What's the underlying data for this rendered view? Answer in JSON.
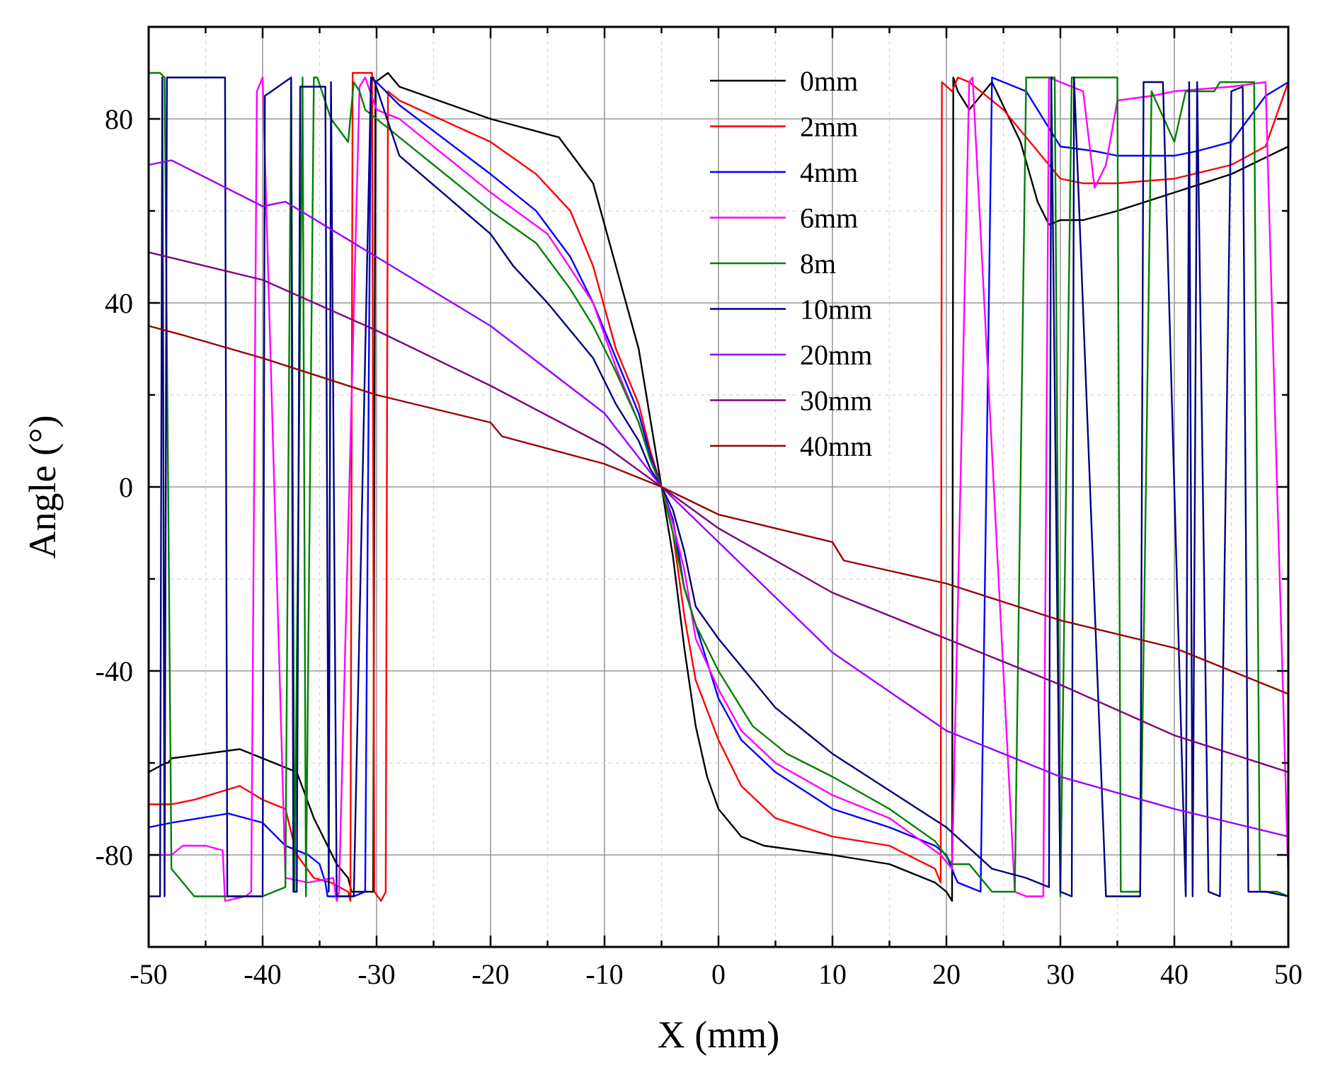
{
  "chart_data": {
    "type": "line",
    "title": "",
    "xlabel": "X (mm)",
    "ylabel": "Angle (°)",
    "xlim": [
      -50,
      50
    ],
    "ylim": [
      -100,
      100
    ],
    "xticks": [
      -50,
      -40,
      -30,
      -20,
      -10,
      0,
      10,
      20,
      30,
      40,
      50
    ],
    "xtick_labels": [
      "-50",
      "-40",
      "-30",
      "-20",
      "-10",
      "0",
      "10",
      "20",
      "30",
      "40",
      "50"
    ],
    "yticks": [
      -80,
      -40,
      0,
      40,
      80
    ],
    "ytick_labels": [
      "-80",
      "-40",
      "0",
      "40",
      "80"
    ],
    "grid": true,
    "legend_position": "top-right",
    "series": [
      {
        "name": "0mm",
        "color": "#000000",
        "x": [
          -50,
          -48.5,
          -48.3,
          -48,
          -42,
          -37,
          -35.5,
          -33.5,
          -32.5,
          -32.2,
          -30.3,
          -30.1,
          -29,
          -28,
          -20,
          -14,
          -11,
          -9,
          -7,
          -6,
          -5,
          -4,
          -3,
          -2,
          -1,
          0,
          2,
          4,
          10,
          15,
          19,
          20,
          20.5,
          20.6,
          21,
          22,
          24,
          26.5,
          28,
          29,
          30,
          32,
          35,
          40,
          45,
          50
        ],
        "y": [
          -62,
          -60,
          -60,
          -59,
          -57,
          -62,
          -72,
          -82,
          -85,
          -88,
          -88,
          88,
          90,
          87,
          80,
          76,
          66,
          48,
          30,
          15,
          0,
          -15,
          -35,
          -52,
          -63,
          -70,
          -76,
          -78,
          -80,
          -82,
          -86,
          -88,
          -90,
          89,
          86,
          82,
          88,
          75,
          62,
          57,
          58,
          58,
          60,
          64,
          68,
          74
        ]
      },
      {
        "name": "2mm",
        "color": "#ff0000",
        "x": [
          -50,
          -48,
          -46,
          -42,
          -40,
          -38,
          -37,
          -35.5,
          -34,
          -32.5,
          -32.3,
          -32.1,
          -30.4,
          -30.2,
          -29.6,
          -29.2,
          -29,
          -28,
          -20,
          -16,
          -13,
          -11,
          -9,
          -7,
          -6,
          -5,
          -4,
          -3,
          -2,
          0,
          2,
          5,
          10,
          15,
          19,
          19.5,
          19.6,
          20.5,
          21,
          22,
          25,
          30,
          32,
          35,
          40,
          45,
          48,
          50
        ],
        "y": [
          -69,
          -69,
          -68,
          -65,
          -68,
          -70,
          -80,
          -85,
          -86,
          -88,
          -90,
          90,
          90,
          -88,
          -90,
          -88,
          86,
          84,
          75,
          68,
          60,
          48,
          30,
          18,
          8,
          0,
          -10,
          -28,
          -42,
          -55,
          -65,
          -72,
          -76,
          -78,
          -83,
          -86,
          88,
          86,
          89,
          88,
          82,
          67,
          66,
          66,
          67,
          70,
          74,
          88
        ]
      },
      {
        "name": "4mm",
        "color": "#0000ff",
        "x": [
          -50,
          -48,
          -43,
          -40,
          -38,
          -36,
          -35,
          -34.5,
          -34.3,
          -32,
          -31,
          -30.5,
          -30,
          -28,
          -20,
          -16,
          -13,
          -11,
          -9,
          -7,
          -6,
          -5,
          -4,
          -3,
          -1,
          0,
          2,
          5,
          10,
          15,
          19,
          20,
          20.8,
          21,
          23,
          24,
          27,
          30,
          33,
          35,
          40,
          42,
          45,
          48,
          50
        ],
        "y": [
          -74,
          -73,
          -71,
          -73,
          -78,
          -80,
          -82,
          -86,
          -89,
          -89,
          -88,
          89,
          88,
          83,
          68,
          60,
          50,
          40,
          28,
          16,
          7,
          0,
          -7,
          -22,
          -38,
          -46,
          -55,
          -62,
          -70,
          -74,
          -78,
          -80,
          -85,
          -86,
          -88,
          89,
          86,
          74,
          73,
          72,
          72,
          73,
          75,
          85,
          88
        ]
      },
      {
        "name": "6mm",
        "color": "#ff00ff",
        "x": [
          -50,
          -48.5,
          -48,
          -47,
          -45,
          -43.5,
          -43.3,
          -41.5,
          -41,
          -40.5,
          -40,
          -38,
          -36,
          -33.8,
          -33.5,
          -33.3,
          -31.5,
          -31,
          -30,
          -28,
          -20,
          -15,
          -11,
          -9,
          -7,
          -6,
          -5,
          -4,
          -3,
          -2,
          0,
          2,
          5,
          10,
          15,
          19.5,
          20.5,
          22,
          22.3,
          26,
          27,
          28.5,
          29,
          30,
          32,
          33,
          34,
          35,
          38,
          40,
          45,
          48,
          50
        ],
        "y": [
          -80,
          -80,
          -80,
          -78,
          -78,
          -79,
          -90,
          -89,
          -88,
          86,
          89,
          -85,
          -86,
          -85,
          -90,
          -88,
          87,
          89,
          82,
          80,
          64,
          55,
          40,
          26,
          14,
          6,
          0,
          -8,
          -18,
          -33,
          -44,
          -53,
          -60,
          -67,
          -72,
          -80,
          -83,
          88,
          89,
          -88,
          -89,
          -89,
          89,
          88,
          86,
          65,
          70,
          84,
          85,
          86,
          87,
          88,
          -85
        ]
      },
      {
        "name": "8m",
        "color": "#008000",
        "x": [
          -50,
          -49,
          -48.6,
          -48,
          -46,
          -44,
          -42,
          -40,
          -38,
          -37.5,
          -37.2,
          -36.5,
          -36.2,
          -35.5,
          -35.2,
          -34,
          -32.5,
          -32,
          -31.5,
          -31,
          -30,
          -28,
          -20,
          -16,
          -13,
          -11,
          -9,
          -7,
          -6,
          -5,
          -4,
          -3,
          -2,
          0,
          3,
          6,
          10,
          15,
          19,
          20.5,
          22,
          24,
          26,
          27,
          28,
          29.5,
          30,
          31,
          32,
          34,
          35,
          35.3,
          37,
          38,
          40,
          41,
          42,
          43.5,
          44,
          46,
          47,
          47.5,
          48,
          49,
          50
        ],
        "y": [
          90,
          90,
          89,
          -83,
          -89,
          -89,
          -89,
          -89,
          -87,
          89,
          -88,
          89,
          -89,
          89,
          89,
          80,
          75,
          88,
          86,
          82,
          80,
          76,
          60,
          53,
          43,
          35,
          25,
          14,
          6,
          0,
          -10,
          -22,
          -30,
          -40,
          -52,
          -58,
          -63,
          -70,
          -77,
          -82,
          -82,
          -88,
          -88,
          89,
          89,
          89,
          -89,
          89,
          89,
          89,
          89,
          -88,
          -88,
          86,
          75,
          86,
          86,
          86,
          88,
          88,
          88,
          -88,
          -88,
          -88,
          -89
        ]
      },
      {
        "name": "10mm",
        "color": "#000080",
        "x": [
          -50,
          -49,
          -48.8,
          -48.6,
          -48.4,
          -46,
          -43.3,
          -43.1,
          -40,
          -39.8,
          -37.5,
          -37.3,
          -37,
          -36.7,
          -34.5,
          -34.2,
          -34,
          -33.5,
          -32,
          -30.5,
          -30.3,
          -28,
          -20,
          -18,
          -15,
          -11,
          -9,
          -7,
          -6,
          -5,
          -4,
          -3,
          -2,
          0,
          5,
          10,
          15,
          20,
          24,
          27,
          29,
          29.2,
          30,
          31,
          31.2,
          34,
          35,
          37,
          37.3,
          39,
          41,
          41.3,
          41.6,
          42,
          43,
          44,
          45,
          46,
          46.5,
          48,
          50
        ],
        "y": [
          -89,
          -89,
          89,
          -89,
          89,
          89,
          89,
          -89,
          -89,
          85,
          89,
          -88,
          -88,
          87,
          87,
          -88,
          88,
          -89,
          -89,
          88,
          89,
          72,
          55,
          48,
          40,
          28,
          18,
          10,
          4,
          0,
          -5,
          -14,
          -26,
          -33,
          -48,
          -58,
          -66,
          -74,
          -83,
          -85,
          -87,
          89,
          -88,
          -89,
          89,
          -89,
          -89,
          -89,
          88,
          88,
          -89,
          88,
          -89,
          88,
          -88,
          -89,
          86,
          87,
          -88,
          -88,
          -89
        ]
      },
      {
        "name": "20mm",
        "color": "#9900ff",
        "x": [
          -50,
          -48,
          -40,
          -38,
          -30,
          -20,
          -10,
          -5,
          0,
          10,
          20,
          30,
          40,
          50
        ],
        "y": [
          70,
          71,
          61,
          62,
          50,
          35,
          16,
          0,
          -12,
          -36,
          -53,
          -63,
          -70,
          -76
        ]
      },
      {
        "name": "30mm",
        "color": "#800080",
        "x": [
          -50,
          -40,
          -30,
          -20,
          -10,
          -5,
          0,
          10,
          20,
          30,
          40,
          50
        ],
        "y": [
          51,
          45,
          34,
          22,
          9,
          0,
          -9,
          -23,
          -33,
          -43,
          -54,
          -62
        ]
      },
      {
        "name": "40mm",
        "color": "#990000",
        "x": [
          -50,
          -47,
          -40,
          -30,
          -20,
          -19,
          -10,
          -5,
          0,
          10,
          11,
          20,
          30,
          40,
          50
        ],
        "y": [
          35,
          33,
          28,
          20,
          14,
          11,
          5,
          0,
          -6,
          -12,
          -16,
          -21,
          -29,
          -35,
          -45
        ]
      }
    ]
  }
}
